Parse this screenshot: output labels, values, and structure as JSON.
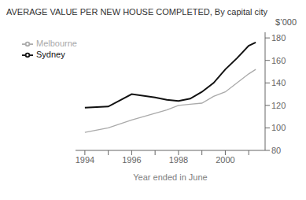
{
  "chart_data": {
    "type": "line",
    "title": "AVERAGE VALUE PER NEW HOUSE COMPLETED, By capital city",
    "xlabel": "Year ended in June",
    "ylabel": "$’000",
    "x": [
      1994,
      1995,
      1996,
      1997,
      1997.5,
      1998,
      1998.5,
      1999,
      1999.5,
      2000,
      2000.5,
      2001,
      2001.3
    ],
    "series": [
      {
        "name": "Sydney",
        "color": "#111111",
        "values": [
          118,
          119,
          130,
          127,
          125,
          124,
          126,
          132,
          140,
          152,
          162,
          173,
          176
        ]
      },
      {
        "name": "Melbourne",
        "color": "#aaaaaa",
        "values": [
          96,
          100,
          107,
          113,
          116,
          120,
          121,
          122,
          128,
          132,
          140,
          148,
          152
        ]
      }
    ],
    "xlim": [
      1993.6,
      2001.7
    ],
    "xticks": [
      1994,
      {
        "value": 1995,
        "label": null
      },
      1996,
      {
        "value": 1997,
        "label": null
      },
      1998,
      {
        "value": 1999,
        "label": null
      },
      2000,
      {
        "value": 2001,
        "label": null
      }
    ],
    "ylim": [
      80,
      185
    ],
    "yticks": [
      80,
      100,
      120,
      140,
      160,
      180
    ],
    "grid": false,
    "legend": "upper left"
  }
}
